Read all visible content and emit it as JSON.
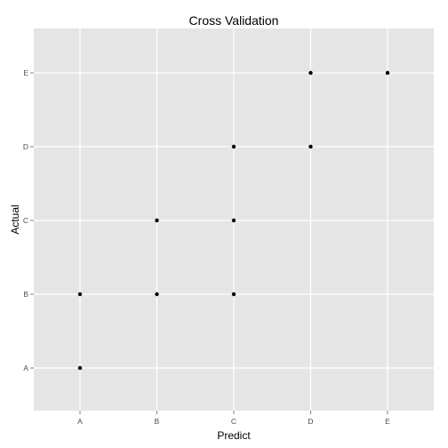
{
  "chart_data": {
    "type": "scatter",
    "title": "Cross Validation",
    "xlabel": "Predict",
    "ylabel": "Actual",
    "x_categories": [
      "A",
      "B",
      "C",
      "D",
      "E"
    ],
    "y_categories": [
      "A",
      "B",
      "C",
      "D",
      "E"
    ],
    "points": [
      {
        "x": "A",
        "y": "A"
      },
      {
        "x": "A",
        "y": "B"
      },
      {
        "x": "B",
        "y": "B"
      },
      {
        "x": "C",
        "y": "B"
      },
      {
        "x": "B",
        "y": "C"
      },
      {
        "x": "C",
        "y": "C"
      },
      {
        "x": "C",
        "y": "D"
      },
      {
        "x": "D",
        "y": "D"
      },
      {
        "x": "D",
        "y": "E"
      },
      {
        "x": "E",
        "y": "E"
      }
    ],
    "grid": true,
    "legend": "none",
    "colors": {
      "panel": "#e5e5e5",
      "grid_major": "#ffffff",
      "grid_minor": "#f2f2f2",
      "point": "#000000",
      "tick": "#7f7f7f"
    }
  }
}
